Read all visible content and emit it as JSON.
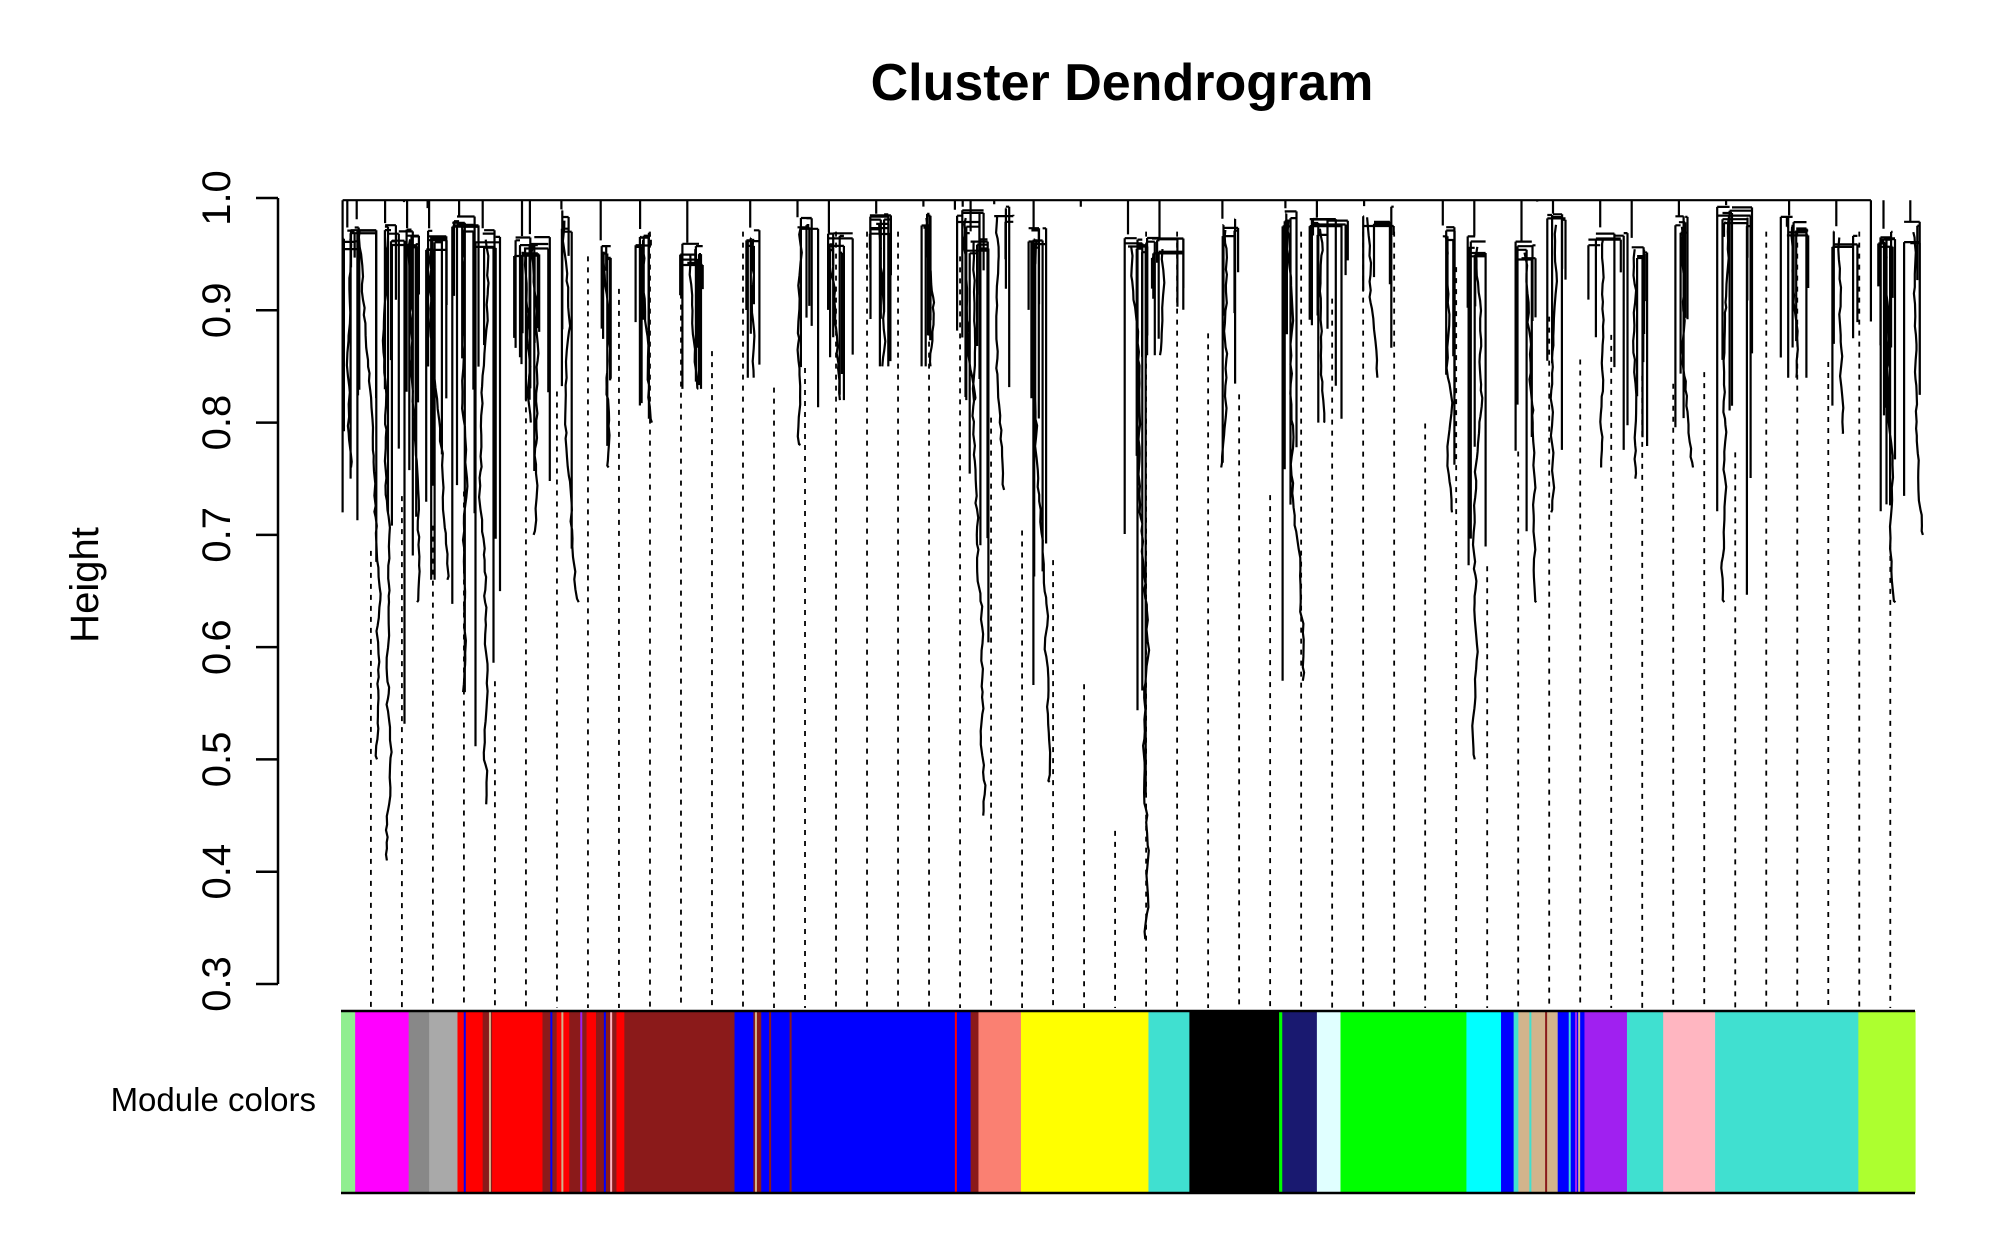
{
  "chart_data": {
    "type": "dendrogram",
    "title": "Cluster Dendrogram",
    "xlabel": "",
    "ylabel": "Height",
    "ylim": [
      0.3,
      1.0
    ],
    "yticks": [
      "0.3",
      "0.4",
      "0.5",
      "0.6",
      "0.7",
      "0.8",
      "0.9",
      "1.0"
    ],
    "color_row_label": "Module colors",
    "colors": {
      "lightgreen": "#90EE90",
      "magenta": "#FF00FF",
      "grey": "#888888",
      "darkgrey": "#A9A9A9",
      "red": "#FF0000",
      "brown": "#8B1A1A",
      "blue": "#0000FF",
      "salmon": "#FA8072",
      "yellow": "#FFFF00",
      "turquoise": "#40E0D0",
      "black": "#000000",
      "midnightblue": "#191970",
      "lightcyan": "#E0FFFF",
      "green": "#00FF00",
      "cyan": "#00FFFF",
      "tan": "#D2B48C",
      "purple": "#A020F0",
      "pink": "#FFB6C1",
      "greenyellow": "#ADFF2F"
    },
    "module_segments": [
      {
        "color": "lightgreen",
        "start": 0.0,
        "end": 0.009
      },
      {
        "color": "magenta",
        "start": 0.009,
        "end": 0.043
      },
      {
        "color": "grey",
        "start": 0.043,
        "end": 0.056
      },
      {
        "color": "darkgrey",
        "start": 0.056,
        "end": 0.074
      },
      {
        "color": "red",
        "start": 0.074,
        "end": 0.09
      },
      {
        "color": "brown",
        "start": 0.09,
        "end": 0.096
      },
      {
        "color": "red",
        "start": 0.096,
        "end": 0.128
      },
      {
        "color": "brown",
        "start": 0.128,
        "end": 0.137
      },
      {
        "color": "red",
        "start": 0.137,
        "end": 0.145
      },
      {
        "color": "brown",
        "start": 0.145,
        "end": 0.156
      },
      {
        "color": "red",
        "start": 0.156,
        "end": 0.162
      },
      {
        "color": "brown",
        "start": 0.162,
        "end": 0.175
      },
      {
        "color": "red",
        "start": 0.175,
        "end": 0.18
      },
      {
        "color": "brown",
        "start": 0.18,
        "end": 0.25
      },
      {
        "color": "blue",
        "start": 0.25,
        "end": 0.262
      },
      {
        "color": "brown",
        "start": 0.262,
        "end": 0.267
      },
      {
        "color": "blue",
        "start": 0.267,
        "end": 0.4
      },
      {
        "color": "brown",
        "start": 0.4,
        "end": 0.405
      },
      {
        "color": "salmon",
        "start": 0.405,
        "end": 0.42
      },
      {
        "color": "salmon",
        "start": 0.42,
        "end": 0.432
      },
      {
        "color": "yellow",
        "start": 0.432,
        "end": 0.513
      },
      {
        "color": "turquoise",
        "start": 0.513,
        "end": 0.539
      },
      {
        "color": "black",
        "start": 0.539,
        "end": 0.596
      },
      {
        "color": "green",
        "start": 0.596,
        "end": 0.598
      },
      {
        "color": "midnightblue",
        "start": 0.598,
        "end": 0.62
      },
      {
        "color": "lightcyan",
        "start": 0.62,
        "end": 0.635
      },
      {
        "color": "green",
        "start": 0.635,
        "end": 0.715
      },
      {
        "color": "cyan",
        "start": 0.715,
        "end": 0.737
      },
      {
        "color": "blue",
        "start": 0.737,
        "end": 0.745
      },
      {
        "color": "turquoise",
        "start": 0.745,
        "end": 0.748
      },
      {
        "color": "tan",
        "start": 0.748,
        "end": 0.773
      },
      {
        "color": "blue",
        "start": 0.773,
        "end": 0.79
      },
      {
        "color": "purple",
        "start": 0.79,
        "end": 0.817
      },
      {
        "color": "turquoise",
        "start": 0.817,
        "end": 0.84
      },
      {
        "color": "pink",
        "start": 0.84,
        "end": 0.873
      },
      {
        "color": "turquoise",
        "start": 0.873,
        "end": 0.964
      },
      {
        "color": "greenyellow",
        "start": 0.964,
        "end": 1.0
      }
    ],
    "module_stripes": [
      {
        "color": "blue",
        "x": 0.078
      },
      {
        "color": "tan",
        "x": 0.094
      },
      {
        "color": "blue",
        "x": 0.133
      },
      {
        "color": "tan",
        "x": 0.14
      },
      {
        "color": "purple",
        "x": 0.152
      },
      {
        "color": "blue",
        "x": 0.167
      },
      {
        "color": "pink",
        "x": 0.171
      },
      {
        "color": "tan",
        "x": 0.263
      },
      {
        "color": "brown",
        "x": 0.272
      },
      {
        "color": "brown",
        "x": 0.285
      },
      {
        "color": "red",
        "x": 0.39
      },
      {
        "color": "turquoise",
        "x": 0.755
      },
      {
        "color": "brown",
        "x": 0.765
      },
      {
        "color": "turquoise",
        "x": 0.78
      },
      {
        "color": "purple",
        "x": 0.784
      },
      {
        "color": "tan",
        "x": 0.786
      },
      {
        "color": "turquoise",
        "x": 0.826
      }
    ]
  }
}
